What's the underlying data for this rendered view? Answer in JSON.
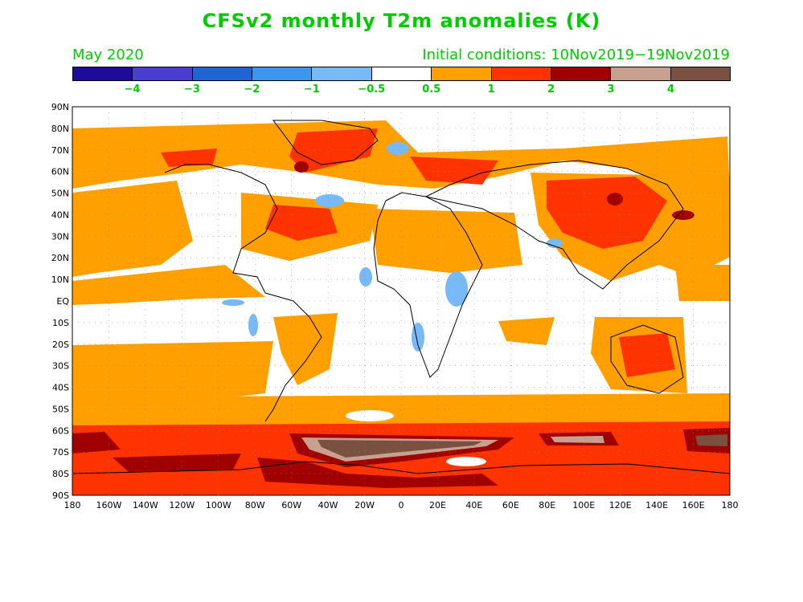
{
  "title": "CFSv2 monthly T2m anomalies (K)",
  "subtitle_left": "May 2020",
  "subtitle_right": "Initial conditions: 10Nov2019−19Nov2019",
  "colorbar": {
    "colors": [
      "#1e0b9c",
      "#4a3ed1",
      "#1e64d2",
      "#3c96ee",
      "#78b9f7",
      "#ffffff",
      "#ffa000",
      "#ff3300",
      "#a00000",
      "#c8a090",
      "#7a5040"
    ],
    "labels": [
      "−4",
      "−3",
      "−2",
      "−1",
      "−0.5",
      "0.5",
      "1",
      "2",
      "3",
      "4"
    ]
  },
  "map": {
    "lat_labels": [
      "90N",
      "80N",
      "70N",
      "60N",
      "50N",
      "40N",
      "30N",
      "20N",
      "10N",
      "EQ",
      "10S",
      "20S",
      "30S",
      "40S",
      "50S",
      "60S",
      "70S",
      "80S",
      "90S"
    ],
    "lon_labels": [
      "180",
      "160W",
      "140W",
      "120W",
      "100W",
      "80W",
      "60W",
      "40W",
      "20W",
      "0",
      "20E",
      "40E",
      "60E",
      "80E",
      "100E",
      "120E",
      "140E",
      "160E",
      "180"
    ]
  }
}
